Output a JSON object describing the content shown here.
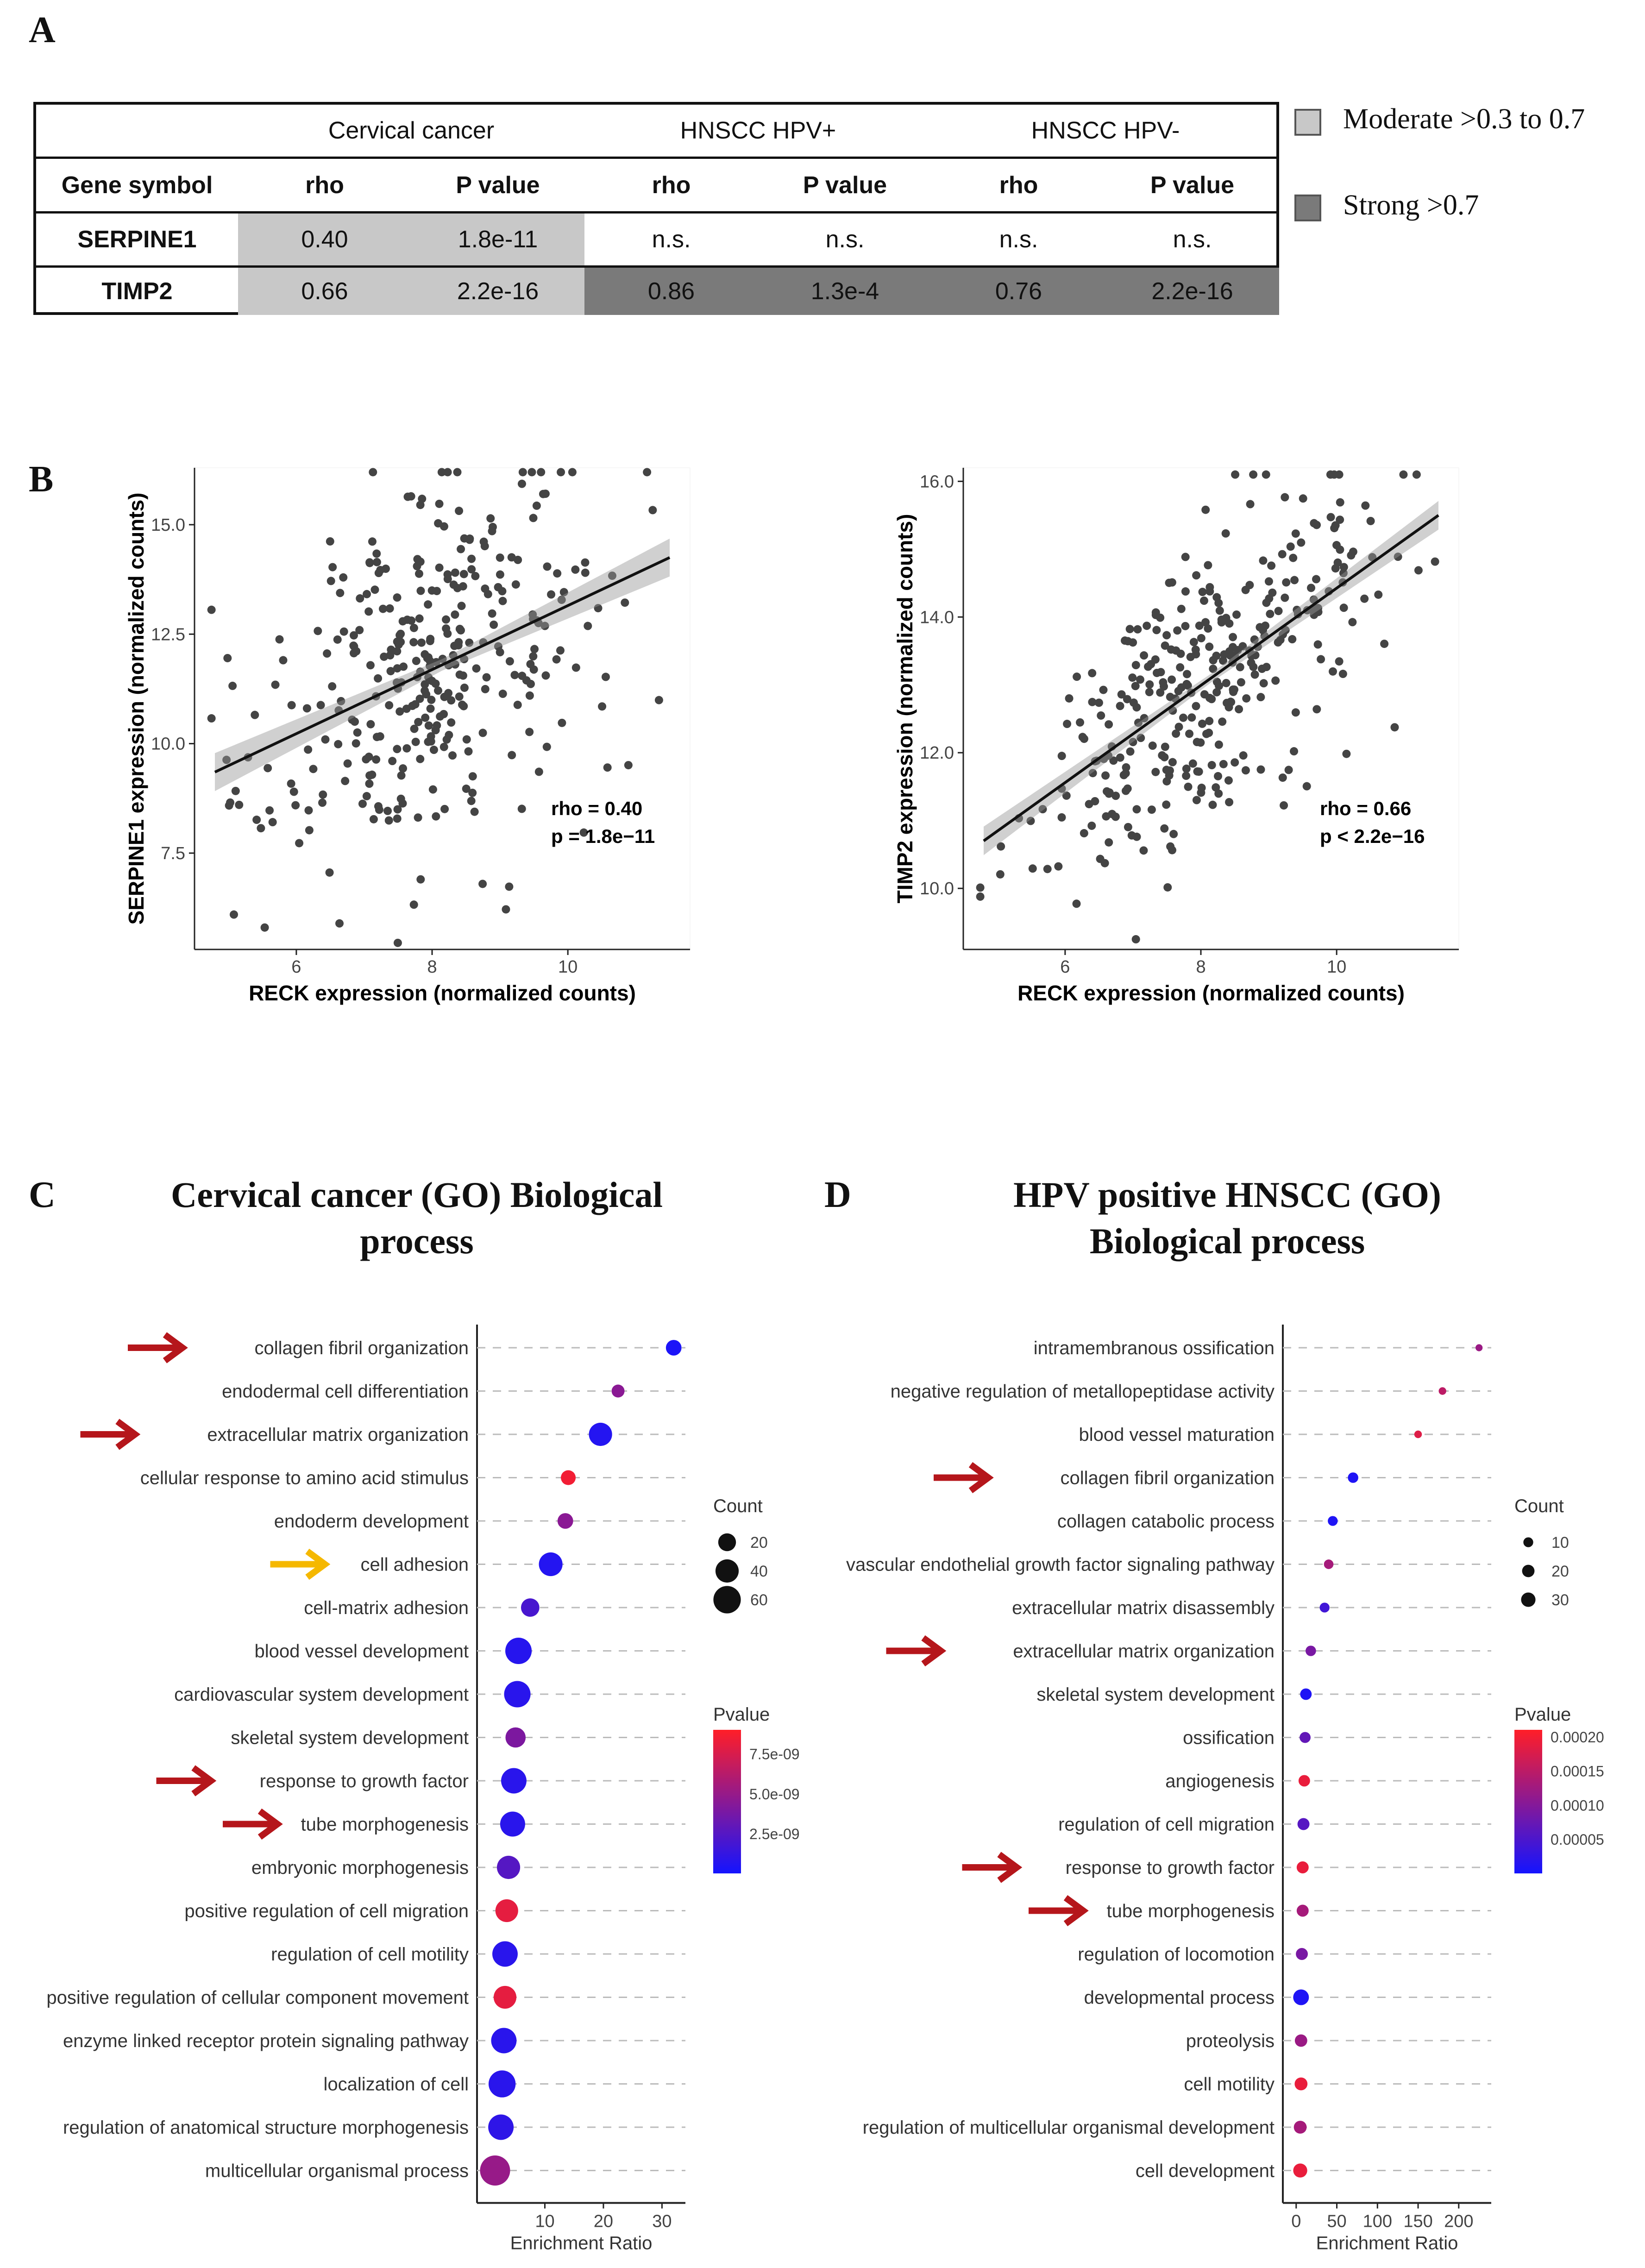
{
  "panel_labels": {
    "A": "A",
    "B": "B",
    "C": "C",
    "D": "D"
  },
  "table": {
    "groups": [
      "Cervical cancer",
      "HNSCC HPV+",
      "HNSCC HPV-"
    ],
    "headers": [
      "Gene symbol",
      "rho",
      "P value",
      "rho",
      "P value",
      "rho",
      "P value"
    ],
    "rows": [
      {
        "gene": "SERPINE1",
        "values": [
          "0.40",
          "1.8e-11",
          "n.s.",
          "n.s.",
          "n.s.",
          "n.s."
        ],
        "levels": [
          "moderate",
          "moderate",
          "none",
          "none",
          "none",
          "none"
        ]
      },
      {
        "gene": "TIMP2",
        "values": [
          "0.66",
          "2.2e-16",
          "0.86",
          "1.3e-4",
          "0.76",
          "2.2e-16"
        ],
        "levels": [
          "moderate",
          "moderate",
          "strong",
          "strong",
          "strong",
          "strong"
        ]
      }
    ]
  },
  "legend_colors": {
    "moderate": "#c8c8c8",
    "strong": "#7a7a7a"
  },
  "legend": [
    {
      "label": "Moderate >0.3 to 0.7",
      "level": "moderate"
    },
    {
      "label": "Strong >0.7",
      "level": "strong"
    }
  ],
  "titles": {
    "C": [
      "Cervical cancer (GO) Biological",
      "process"
    ],
    "D": [
      "HPV positive HNSCC (GO)",
      "Biological process"
    ]
  },
  "chart_data": [
    {
      "type": "scatter",
      "id": "B1",
      "xlabel": "RECK expression (normalized counts)",
      "ylabel": "SERPINE1 expression (normalized counts)",
      "xlim": [
        4.5,
        11.8
      ],
      "ylim": [
        5.3,
        16.3
      ],
      "xticks": [
        6,
        8,
        10
      ],
      "xtick_labels": [
        "6",
        "8",
        "10"
      ],
      "yticks": [
        7.5,
        10.0,
        12.5,
        15.0
      ],
      "ytick_labels": [
        "7.5",
        "10.0",
        "12.5",
        "15.0"
      ],
      "fit": {
        "x": [
          4.8,
          11.5
        ],
        "y": [
          9.35,
          14.25
        ]
      },
      "annotation": [
        "rho = 0.40",
        "p = 1.8e−11"
      ],
      "n_points": 330,
      "rho": 0.4,
      "seed": 17
    },
    {
      "type": "scatter",
      "id": "B2",
      "xlabel": "RECK expression (normalized counts)",
      "ylabel": "TIMP2 expression (normalized counts)",
      "xlim": [
        4.5,
        11.8
      ],
      "ylim": [
        9.1,
        16.2
      ],
      "xticks": [
        6,
        8,
        10
      ],
      "xtick_labels": [
        "6",
        "8",
        "10"
      ],
      "yticks": [
        10.0,
        12.0,
        14.0,
        16.0
      ],
      "ytick_labels": [
        "10.0",
        "12.0",
        "14.0",
        "16.0"
      ],
      "fit": {
        "x": [
          4.8,
          11.5
        ],
        "y": [
          10.7,
          15.5
        ]
      },
      "annotation": [
        "rho = 0.66",
        "p < 2.2e−16"
      ],
      "n_points": 330,
      "rho": 0.66,
      "seed": 29
    },
    {
      "type": "scatter",
      "id": "C",
      "xlabel": "Enrichment Ratio",
      "xlim": [
        0,
        34
      ],
      "xticks": [
        10,
        20,
        30
      ],
      "xtick_labels": [
        "10",
        "20",
        "30"
      ],
      "count_title": "Count",
      "count_legend": [
        20,
        40,
        60
      ],
      "pvalue_title": "Pvalue",
      "pvalue_range": [
        0,
        9e-09
      ],
      "pvalue_ticks": [
        2.5e-09,
        5e-09,
        7.5e-09
      ],
      "pvalue_tick_labels": [
        "2.5e-09",
        "5.0e-09",
        "7.5e-09"
      ],
      "size_range": [
        10,
        65
      ],
      "terms": [
        {
          "label": "collagen fibril organization",
          "ratio": 32,
          "count": 14,
          "p": 3e-10,
          "arrow": "red"
        },
        {
          "label": "endodermal cell differentiation",
          "ratio": 22.5,
          "count": 8,
          "p": 4.5e-09,
          "arrow": ""
        },
        {
          "label": "extracellular matrix organization",
          "ratio": 19.5,
          "count": 40,
          "p": 6e-10,
          "arrow": "red"
        },
        {
          "label": "cellular response to amino acid stimulus",
          "ratio": 14,
          "count": 12,
          "p": 8.5e-09,
          "arrow": ""
        },
        {
          "label": "endoderm development",
          "ratio": 13.5,
          "count": 14,
          "p": 4.5e-09,
          "arrow": ""
        },
        {
          "label": "cell adhesion",
          "ratio": 11,
          "count": 42,
          "p": 6e-10,
          "arrow": "orange"
        },
        {
          "label": "cell-matrix adhesion",
          "ratio": 7.5,
          "count": 22,
          "p": 2e-09,
          "arrow": ""
        },
        {
          "label": "blood vessel development",
          "ratio": 5.5,
          "count": 55,
          "p": 7e-10,
          "arrow": ""
        },
        {
          "label": "cardiovascular system development",
          "ratio": 5.3,
          "count": 55,
          "p": 8e-10,
          "arrow": ""
        },
        {
          "label": "skeletal system development",
          "ratio": 5,
          "count": 28,
          "p": 4e-09,
          "arrow": ""
        },
        {
          "label": "response to growth factor",
          "ratio": 4.7,
          "count": 50,
          "p": 8e-10,
          "arrow": "red"
        },
        {
          "label": "tube morphogenesis",
          "ratio": 4.5,
          "count": 48,
          "p": 8e-10,
          "arrow": "red"
        },
        {
          "label": "embryonic morphogenesis",
          "ratio": 3.8,
          "count": 40,
          "p": 2.5e-09,
          "arrow": ""
        },
        {
          "label": "positive regulation of cell migration",
          "ratio": 3.5,
          "count": 38,
          "p": 8e-09,
          "arrow": ""
        },
        {
          "label": "regulation of cell motility",
          "ratio": 3.2,
          "count": 50,
          "p": 8e-10,
          "arrow": ""
        },
        {
          "label": "positive regulation of cellular component movement",
          "ratio": 3.2,
          "count": 38,
          "p": 8e-09,
          "arrow": ""
        },
        {
          "label": "enzyme linked receptor protein signaling pathway",
          "ratio": 3,
          "count": 50,
          "p": 8e-10,
          "arrow": ""
        },
        {
          "label": "localization of cell",
          "ratio": 2.7,
          "count": 58,
          "p": 8e-10,
          "arrow": ""
        },
        {
          "label": "regulation of anatomical structure morphogenesis",
          "ratio": 2.5,
          "count": 50,
          "p": 1e-09,
          "arrow": ""
        },
        {
          "label": "multicellular organismal process",
          "ratio": 1.5,
          "count": 75,
          "p": 5e-09,
          "arrow": ""
        }
      ]
    },
    {
      "type": "scatter",
      "id": "D",
      "xlabel": "Enrichment Ratio",
      "xlim": [
        -5,
        240
      ],
      "xticks": [
        0,
        50,
        100,
        150,
        200
      ],
      "xtick_labels": [
        "0",
        "50",
        "100",
        "150",
        "200"
      ],
      "count_title": "Count",
      "count_legend": [
        10,
        20,
        30
      ],
      "pvalue_title": "Pvalue",
      "pvalue_range": [
        0,
        0.00021
      ],
      "pvalue_ticks": [
        5e-05,
        0.0001,
        0.00015,
        0.0002
      ],
      "pvalue_tick_labels": [
        "0.00005",
        "0.00010",
        "0.00015",
        "0.00020"
      ],
      "size_range": [
        8,
        34
      ],
      "terms": [
        {
          "label": "intramembranous ossification",
          "ratio": 225,
          "count": 3,
          "p": 0.00012,
          "arrow": ""
        },
        {
          "label": "negative regulation of metallopeptidase activity",
          "ratio": 180,
          "count": 4,
          "p": 0.00015,
          "arrow": ""
        },
        {
          "label": "blood vessel maturation",
          "ratio": 150,
          "count": 4,
          "p": 0.00018,
          "arrow": ""
        },
        {
          "label": "collagen fibril organization",
          "ratio": 70,
          "count": 12,
          "p": 1e-05,
          "arrow": "red"
        },
        {
          "label": "collagen catabolic process",
          "ratio": 45,
          "count": 10,
          "p": 1e-05,
          "arrow": ""
        },
        {
          "label": "vascular endothelial growth factor signaling pathway",
          "ratio": 40,
          "count": 9,
          "p": 0.00013,
          "arrow": ""
        },
        {
          "label": "extracellular matrix disassembly",
          "ratio": 35,
          "count": 10,
          "p": 4e-05,
          "arrow": ""
        },
        {
          "label": "extracellular matrix organization",
          "ratio": 18,
          "count": 12,
          "p": 9e-05,
          "arrow": "red"
        },
        {
          "label": "skeletal system development",
          "ratio": 12,
          "count": 16,
          "p": 1e-05,
          "arrow": ""
        },
        {
          "label": "ossification",
          "ratio": 11,
          "count": 14,
          "p": 7e-05,
          "arrow": ""
        },
        {
          "label": "angiogenesis",
          "ratio": 10,
          "count": 16,
          "p": 0.00019,
          "arrow": ""
        },
        {
          "label": "regulation of cell migration",
          "ratio": 9,
          "count": 18,
          "p": 6e-05,
          "arrow": ""
        },
        {
          "label": "response to growth factor",
          "ratio": 8,
          "count": 18,
          "p": 0.00019,
          "arrow": "red"
        },
        {
          "label": "tube morphogenesis",
          "ratio": 8,
          "count": 18,
          "p": 0.00013,
          "arrow": "red"
        },
        {
          "label": "regulation of locomotion",
          "ratio": 7,
          "count": 18,
          "p": 9e-05,
          "arrow": ""
        },
        {
          "label": "developmental process",
          "ratio": 6,
          "count": 38,
          "p": 1e-05,
          "arrow": ""
        },
        {
          "label": "proteolysis",
          "ratio": 6,
          "count": 20,
          "p": 0.00012,
          "arrow": ""
        },
        {
          "label": "cell motility",
          "ratio": 6,
          "count": 22,
          "p": 0.00019,
          "arrow": ""
        },
        {
          "label": "regulation of multicellular organismal development",
          "ratio": 5,
          "count": 22,
          "p": 0.00013,
          "arrow": ""
        },
        {
          "label": "cell development",
          "ratio": 5,
          "count": 28,
          "p": 0.00019,
          "arrow": ""
        }
      ]
    }
  ]
}
